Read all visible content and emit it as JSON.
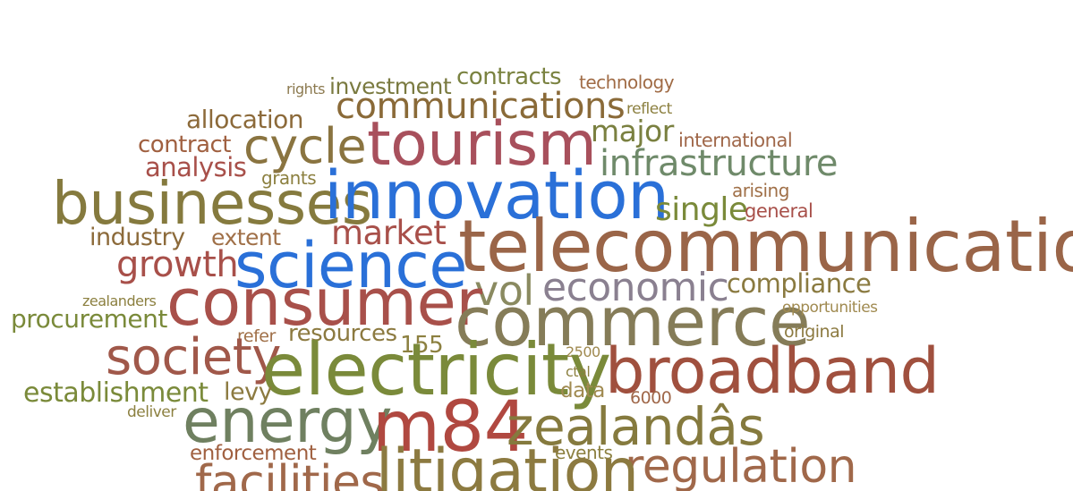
{
  "word_cloud": {
    "words": [
      {
        "id": "rights",
        "text": "rights",
        "color": "#8c7a50"
      },
      {
        "id": "investment",
        "text": "investment",
        "color": "#7a7a40"
      },
      {
        "id": "contracts",
        "text": "contracts",
        "color": "#7a8240"
      },
      {
        "id": "technology",
        "text": "technology",
        "color": "#a06b45"
      },
      {
        "id": "communications",
        "text": "communications",
        "color": "#8a6a38"
      },
      {
        "id": "reflect",
        "text": "reflect",
        "color": "#8c8040"
      },
      {
        "id": "allocation",
        "text": "allocation",
        "color": "#8c6a3a"
      },
      {
        "id": "tourism",
        "text": "tourism",
        "color": "#a8505c"
      },
      {
        "id": "major",
        "text": "major",
        "color": "#7a8040"
      },
      {
        "id": "international",
        "text": "international",
        "color": "#a0684a"
      },
      {
        "id": "contract",
        "text": "contract",
        "color": "#a06040"
      },
      {
        "id": "cycle",
        "text": "cycle",
        "color": "#8a7440"
      },
      {
        "id": "infrastructure",
        "text": "infrastructure",
        "color": "#6f8a6a"
      },
      {
        "id": "analysis",
        "text": "analysis",
        "color": "#a8504a"
      },
      {
        "id": "grants",
        "text": "grants",
        "color": "#8c8040"
      },
      {
        "id": "arising",
        "text": "arising",
        "color": "#a07048"
      },
      {
        "id": "businesses",
        "text": "businesses",
        "color": "#857a3e"
      },
      {
        "id": "innovation",
        "text": "innovation",
        "color": "#2a70d8"
      },
      {
        "id": "single",
        "text": "single",
        "color": "#7a8a3a"
      },
      {
        "id": "general",
        "text": "general",
        "color": "#a8504a"
      },
      {
        "id": "industry",
        "text": "industry",
        "color": "#8c6a3a"
      },
      {
        "id": "extent",
        "text": "extent",
        "color": "#a07048"
      },
      {
        "id": "market",
        "text": "market",
        "color": "#a8504a"
      },
      {
        "id": "telecommunications",
        "text": "telecommunicatio",
        "color": "#9a6548"
      },
      {
        "id": "growth",
        "text": "growth",
        "color": "#a8504a"
      },
      {
        "id": "science",
        "text": "science",
        "color": "#2a70d8"
      },
      {
        "id": "vol",
        "text": "vol",
        "color": "#8a8a60"
      },
      {
        "id": "economic",
        "text": "economic",
        "color": "#8a8090"
      },
      {
        "id": "compliance",
        "text": "compliance",
        "color": "#8a7a40"
      },
      {
        "id": "zealanders",
        "text": "zealanders",
        "color": "#8c8040"
      },
      {
        "id": "consumer",
        "text": "consumer",
        "color": "#a8504a"
      },
      {
        "id": "commerce",
        "text": "commerce",
        "color": "#857c58"
      },
      {
        "id": "opportunities",
        "text": "opportunities",
        "color": "#a08a50"
      },
      {
        "id": "procurement",
        "text": "procurement",
        "color": "#7a8a3a"
      },
      {
        "id": "original",
        "text": "original",
        "color": "#8c7a40"
      },
      {
        "id": "refer",
        "text": "refer",
        "color": "#a07048"
      },
      {
        "id": "resources",
        "text": "resources",
        "color": "#8c7a40"
      },
      {
        "id": "s155",
        "text": "155",
        "color": "#8c8040"
      },
      {
        "id": "society",
        "text": "society",
        "color": "#a0584a"
      },
      {
        "id": "n2500",
        "text": "2500",
        "color": "#a08a50"
      },
      {
        "id": "electricity",
        "text": "electricity",
        "color": "#7a8a3a"
      },
      {
        "id": "broadband",
        "text": "broadband",
        "color": "#a0503e"
      },
      {
        "id": "ctal",
        "text": "ctal",
        "color": "#8c8040"
      },
      {
        "id": "establishment",
        "text": "establishment",
        "color": "#7a8a3a"
      },
      {
        "id": "levy",
        "text": "levy",
        "color": "#8c7a40"
      },
      {
        "id": "data",
        "text": "data",
        "color": "#a08a50"
      },
      {
        "id": "n6000",
        "text": "6000",
        "color": "#a0684a"
      },
      {
        "id": "deliver",
        "text": "deliver",
        "color": "#8c8040"
      },
      {
        "id": "energy",
        "text": "energy",
        "color": "#6f8060"
      },
      {
        "id": "m84",
        "text": "m84",
        "color": "#b04840"
      },
      {
        "id": "zealands",
        "text": "zealandâs",
        "color": "#857a3e"
      },
      {
        "id": "enforcement",
        "text": "enforcement",
        "color": "#a06040"
      },
      {
        "id": "events",
        "text": "events",
        "color": "#8c8040"
      },
      {
        "id": "regulation",
        "text": "regulation",
        "color": "#a0684a"
      },
      {
        "id": "litigation",
        "text": "litigation",
        "color": "#8c7a40"
      },
      {
        "id": "facilities",
        "text": "facilities",
        "color": "#a0684a"
      }
    ]
  }
}
